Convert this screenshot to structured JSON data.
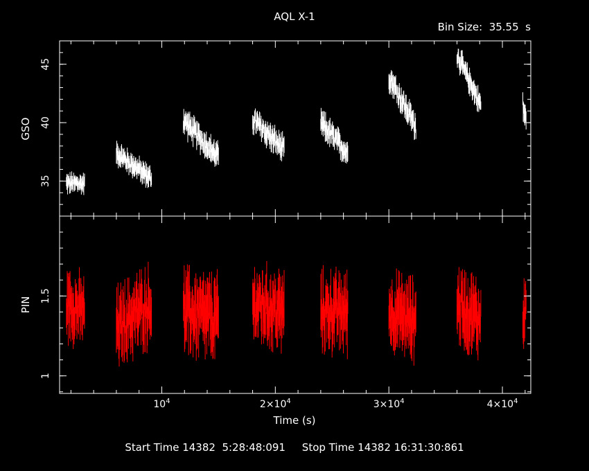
{
  "chart_data": {
    "type": "line",
    "title": "AQL X-1",
    "bin_size_label": "Bin Size:  35.55  s",
    "xlabel": "Time (s)",
    "xlim": [
      1000,
      42500
    ],
    "x_ticks": [
      {
        "value": 10000,
        "mant": "",
        "exp": "4"
      },
      {
        "value": 20000,
        "mant": "2×",
        "exp": "4"
      },
      {
        "value": 30000,
        "mant": "3×",
        "exp": "4"
      },
      {
        "value": 40000,
        "mant": "4×",
        "exp": "4"
      }
    ],
    "footer": "Start Time 14382  5:28:48:091     Stop Time 14382 16:31:30:861",
    "panels": [
      {
        "name": "GSO",
        "ylabel": "GSO",
        "color": "#ffffff",
        "ylim": [
          32.0,
          47.0
        ],
        "y_ticks": [
          35,
          40,
          45
        ],
        "segments": [
          {
            "t0": 1600,
            "t1": 3200,
            "trend": [
              34.8,
              34.8
            ],
            "noise": 0.75
          },
          {
            "t0": 6000,
            "t1": 9100,
            "trend": [
              37.4,
              35.2
            ],
            "noise": 0.85
          },
          {
            "t0": 11900,
            "t1": 15000,
            "trend": [
              40.2,
              37.0
            ],
            "noise": 1.0
          },
          {
            "t0": 18000,
            "t1": 20800,
            "trend": [
              40.3,
              37.6
            ],
            "noise": 1.0
          },
          {
            "t0": 24000,
            "t1": 26400,
            "trend": [
              40.0,
              37.3
            ],
            "noise": 1.0
          },
          {
            "t0": 30000,
            "t1": 32400,
            "trend": [
              44.0,
              39.6
            ],
            "noise": 1.0
          },
          {
            "t0": 36000,
            "t1": 38100,
            "trend": [
              45.8,
              41.5
            ],
            "noise": 0.9
          },
          {
            "t0": 41800,
            "t1": 42100,
            "trend": [
              41.5,
              40.0
            ],
            "noise": 1.0
          }
        ]
      },
      {
        "name": "PIN",
        "ylabel": "PIN",
        "color": "#ff0000",
        "ylim": [
          0.89,
          2.0
        ],
        "y_ticks": [
          1,
          1.5
        ],
        "segments": [
          {
            "t0": 1600,
            "t1": 3200,
            "trend": [
              1.45,
              1.4
            ],
            "noise": 0.18
          },
          {
            "t0": 6000,
            "t1": 9100,
            "trend": [
              1.3,
              1.45
            ],
            "noise": 0.2
          },
          {
            "t0": 11900,
            "t1": 15000,
            "trend": [
              1.4,
              1.35
            ],
            "noise": 0.22
          },
          {
            "t0": 18000,
            "t1": 20800,
            "trend": [
              1.45,
              1.4
            ],
            "noise": 0.2
          },
          {
            "t0": 24000,
            "t1": 26400,
            "trend": [
              1.4,
              1.4
            ],
            "noise": 0.2
          },
          {
            "t0": 30000,
            "t1": 32400,
            "trend": [
              1.4,
              1.35
            ],
            "noise": 0.2
          },
          {
            "t0": 36000,
            "t1": 38100,
            "trend": [
              1.45,
              1.35
            ],
            "noise": 0.2
          },
          {
            "t0": 41800,
            "t1": 42100,
            "trend": [
              1.4,
              1.4
            ],
            "noise": 0.2
          }
        ]
      }
    ]
  }
}
